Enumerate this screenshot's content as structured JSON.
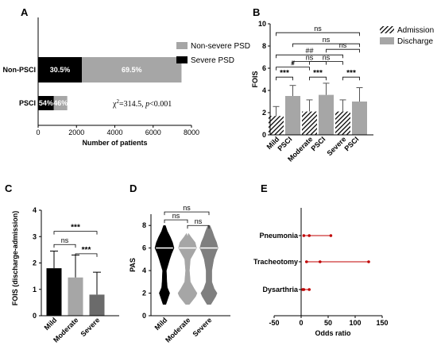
{
  "chart_data": [
    {
      "panel": "A",
      "type": "bar",
      "orientation": "horizontal",
      "stacked": true,
      "categories": [
        "Non-PSCI",
        "PSCI"
      ],
      "series": [
        {
          "name": "Severe PSD",
          "color": "#000000",
          "values": [
            2280,
            820
          ],
          "labels": [
            "30.5%",
            "54%"
          ]
        },
        {
          "name": "Non-severe PSD",
          "color": "#a6a6a6",
          "values": [
            5200,
            700
          ],
          "labels": [
            "69.5%",
            "46%"
          ]
        }
      ],
      "xlabel": "Number of patients",
      "xlim": [
        0,
        8000
      ],
      "xticks": [
        "0",
        "2000",
        "4000",
        "6000",
        "8000"
      ],
      "annotation": {
        "prefix": "χ",
        "sup": "2",
        "stat": "=314.5, ",
        "p": "p",
        "p_rest": "<0.001"
      },
      "legend_position": "right"
    },
    {
      "panel": "B",
      "type": "bar",
      "grouped": true,
      "categories": [
        {
          "line1": "Mild",
          "line2": "PSCI"
        },
        {
          "line1": "Moderate",
          "line2": "PSCI"
        },
        {
          "line1": "Severe",
          "line2": "PSCI"
        }
      ],
      "series": [
        {
          "name": "Admission",
          "pattern": "hatch",
          "values": [
            1.7,
            2.1,
            2.1
          ],
          "sd": [
            0.85,
            1.05,
            1.05
          ]
        },
        {
          "name": "Discharge",
          "color": "#a6a6a6",
          "values": [
            3.5,
            3.6,
            3.0
          ],
          "sd": [
            0.95,
            1.05,
            1.25
          ]
        }
      ],
      "ylabel": "FOIS",
      "ylim": [
        0,
        10
      ],
      "yticks": [
        "0",
        "2",
        "4",
        "6",
        "8",
        "10"
      ],
      "legend_position": "top-right",
      "brackets": [
        {
          "from": "mild-adm",
          "to": "mild-dis",
          "y": 5.2,
          "label": "***"
        },
        {
          "from": "mod-adm",
          "to": "mod-dis",
          "y": 5.2,
          "label": "***"
        },
        {
          "from": "sev-adm",
          "to": "sev-dis",
          "y": 5.2,
          "label": "***"
        },
        {
          "from": "mild-adm",
          "to": "mod-adm",
          "y": 6.1,
          "label": "#"
        },
        {
          "from": "mild-dis",
          "to": "mod-dis",
          "y": 6.6,
          "label": "ns"
        },
        {
          "from": "mild-adm",
          "to": "sev-adm",
          "y": 7.2,
          "label": "##"
        },
        {
          "from": "mod-adm",
          "to": "sev-adm",
          "y": 6.6,
          "label": "ns"
        },
        {
          "from": "mild-dis",
          "to": "sev-dis",
          "y": 8.2,
          "label": "ns"
        },
        {
          "from": "mod-dis",
          "to": "sev-dis",
          "y": 7.7,
          "label": "ns"
        },
        {
          "from": "mild-adm",
          "to": "sev-dis",
          "y": 9.2,
          "label": "ns"
        }
      ]
    },
    {
      "panel": "C",
      "type": "bar",
      "categories": [
        "Mild",
        "Moderate",
        "Severe"
      ],
      "values": [
        1.8,
        1.45,
        0.8
      ],
      "sd": [
        0.65,
        0.85,
        0.85
      ],
      "colors": [
        "#000000",
        "#a6a6a6",
        "#6b6b6b"
      ],
      "ylabel": "FOIS (discharge-admission)",
      "ylim": [
        0,
        4
      ],
      "yticks": [
        "0",
        "1",
        "2",
        "3",
        "4"
      ],
      "brackets": [
        {
          "from": 0,
          "to": 1,
          "y": 2.7,
          "label": "ns"
        },
        {
          "from": 1,
          "to": 2,
          "y": 2.35,
          "label": "***"
        },
        {
          "from": 0,
          "to": 2,
          "y": 3.2,
          "label": "***"
        }
      ]
    },
    {
      "panel": "D",
      "type": "violin",
      "categories": [
        "Mild",
        "Moderate",
        "Severe"
      ],
      "colors": [
        "#000000",
        "#a6a6a6",
        "#7f7f7f"
      ],
      "median_colors": [
        "#ffffff",
        "#ffffff",
        "#ffffff"
      ],
      "medians": [
        6,
        6,
        6
      ],
      "range": [
        [
          1,
          8
        ],
        [
          1,
          7
        ],
        [
          1,
          8
        ]
      ],
      "density": [
        [
          [
            1,
            0.15
          ],
          [
            2,
            0.55
          ],
          [
            2.5,
            0.3
          ],
          [
            3,
            0.25
          ],
          [
            4,
            0.2
          ],
          [
            5,
            0.55
          ],
          [
            5.5,
            0.75
          ],
          [
            6,
            1.0
          ],
          [
            6.5,
            0.85
          ],
          [
            7,
            0.6
          ],
          [
            7.5,
            0.3
          ],
          [
            8,
            0.1
          ]
        ],
        [
          [
            1,
            0.2
          ],
          [
            1.7,
            0.85
          ],
          [
            2,
            1.0
          ],
          [
            2.4,
            0.7
          ],
          [
            3,
            0.3
          ],
          [
            4,
            0.2
          ],
          [
            5,
            0.3
          ],
          [
            5.6,
            0.7
          ],
          [
            6,
            0.95
          ],
          [
            6.5,
            0.8
          ],
          [
            7,
            0.35
          ],
          [
            7.3,
            0.1
          ]
        ],
        [
          [
            1,
            0.2
          ],
          [
            1.7,
            0.7
          ],
          [
            2,
            0.85
          ],
          [
            2.4,
            0.55
          ],
          [
            3,
            0.3
          ],
          [
            4,
            0.3
          ],
          [
            5,
            0.5
          ],
          [
            5.6,
            0.75
          ],
          [
            6,
            0.95
          ],
          [
            6.5,
            0.8
          ],
          [
            7,
            0.55
          ],
          [
            7.5,
            0.35
          ],
          [
            8,
            0.1
          ]
        ]
      ],
      "ylabel": "PAS",
      "ylim": [
        0,
        9
      ],
      "yticks": [
        "0",
        "2",
        "4",
        "6",
        "8"
      ],
      "brackets": [
        {
          "from": 0,
          "to": 1,
          "y": 8.5,
          "label": "ns"
        },
        {
          "from": 1,
          "to": 2,
          "y": 8.0,
          "label": "ns"
        },
        {
          "from": 0,
          "to": 2,
          "y": 9.2,
          "label": "ns"
        }
      ]
    },
    {
      "panel": "E",
      "type": "forest",
      "categories": [
        "Pneumonia",
        "Tracheotomy",
        "Dysarthria"
      ],
      "points": [
        {
          "name": "Pneumonia",
          "values": [
            5,
            15,
            55
          ]
        },
        {
          "name": "Tracheotomy",
          "values": [
            10,
            35,
            125
          ]
        },
        {
          "name": "Dysarthria",
          "values": [
            3,
            5,
            15
          ]
        }
      ],
      "color": "#c00000",
      "xlabel": "Odds ratio",
      "xlim": [
        -50,
        150
      ],
      "xticks": [
        "-50",
        "0",
        "50",
        "100",
        "150"
      ]
    }
  ]
}
